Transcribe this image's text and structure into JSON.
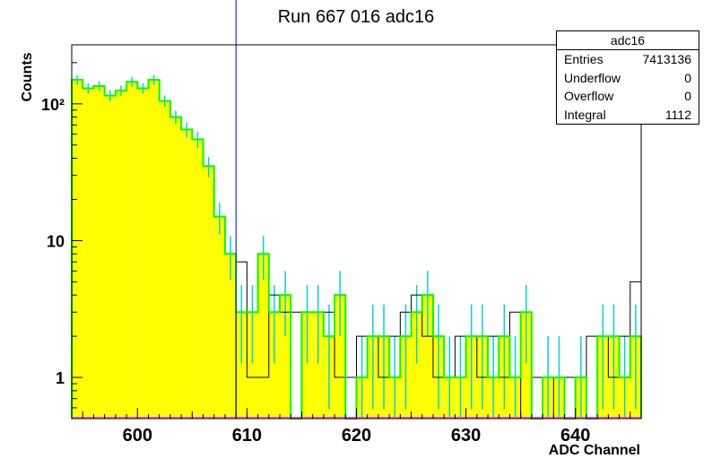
{
  "title": "Run 667 016 adc16",
  "stats": {
    "name": "adc16",
    "rows": [
      {
        "label": "Entries",
        "value": "7413136"
      },
      {
        "label": "Underflow",
        "value": "0"
      },
      {
        "label": "Overflow",
        "value": "0"
      },
      {
        "label": "Integral",
        "value": "1112"
      }
    ]
  },
  "chart_data": {
    "type": "bar",
    "title": "Run 667 016 adc16",
    "xlabel": "ADC Channel",
    "ylabel": "Counts",
    "xlim": [
      594,
      646
    ],
    "ylim": [
      0.5,
      270
    ],
    "log_y": true,
    "x_ticks": [
      600,
      610,
      620,
      630,
      640
    ],
    "y_ticks": [
      {
        "value": 1,
        "label": "1"
      },
      {
        "value": 10,
        "label": "10"
      },
      {
        "value": 100,
        "label": "10²"
      }
    ],
    "colors": {
      "fill": "#ffff00",
      "line": "#00ff00",
      "error": "#00d5d5",
      "ref": "#000000",
      "marker": "#0000cc",
      "baseline": "#ff55ff"
    },
    "marker_x": 609,
    "series": [
      {
        "name": "",
        "x": [
          594,
          595,
          596,
          597,
          598,
          599,
          600,
          601,
          602,
          603,
          604,
          605,
          606,
          607,
          608,
          609,
          610,
          611,
          612,
          613,
          614,
          615,
          616,
          617,
          618,
          619,
          620,
          621,
          622,
          623,
          624,
          625,
          626,
          627,
          628,
          629,
          630,
          631,
          632,
          633,
          634,
          635,
          636,
          637,
          638,
          639,
          640,
          641,
          642,
          643,
          644,
          645
        ],
        "values": [
          150,
          130,
          135,
          115,
          125,
          145,
          130,
          150,
          105,
          80,
          65,
          55,
          35,
          15,
          8,
          3,
          3,
          8,
          3,
          4,
          0.5,
          3,
          3,
          2,
          4,
          0.5,
          1,
          2,
          2,
          1,
          2,
          3,
          4,
          2,
          1,
          1,
          2,
          2,
          1,
          2,
          1,
          3,
          0.5,
          1,
          1,
          0.5,
          1,
          0.5,
          2,
          2,
          1,
          2
        ]
      }
    ],
    "reference_series": {
      "x": [
        609,
        610,
        611,
        612,
        613,
        614,
        615,
        616,
        617,
        618,
        619,
        620,
        621,
        622,
        623,
        624,
        625,
        626,
        627,
        628,
        629,
        630,
        631,
        632,
        633,
        634,
        635,
        636,
        637,
        638,
        639,
        640,
        641,
        642,
        643,
        644,
        645
      ],
      "values": [
        7,
        1,
        1,
        4,
        3,
        3,
        3,
        3,
        3,
        1,
        1,
        2,
        2,
        1,
        2,
        3,
        4,
        2,
        1,
        1,
        2,
        2,
        1,
        2,
        1,
        3,
        0.5,
        1,
        1,
        0.5,
        1,
        0.5,
        2,
        2,
        1,
        2,
        5
      ]
    }
  }
}
